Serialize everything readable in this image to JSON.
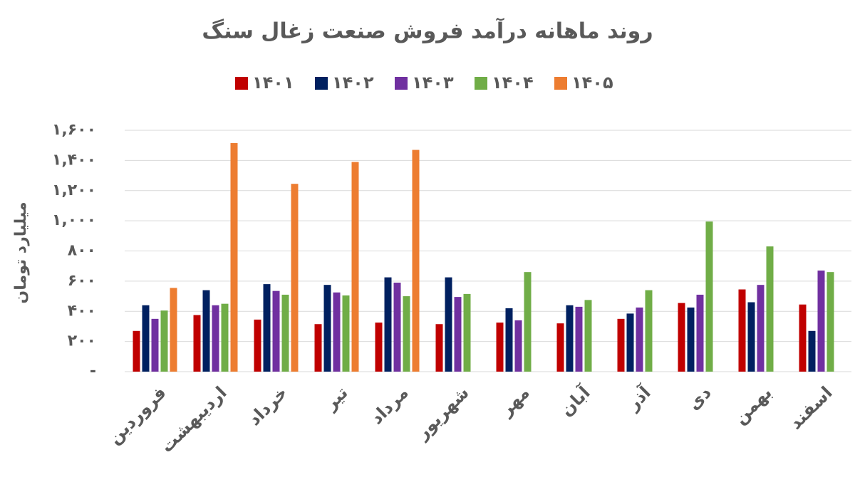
{
  "chart_data": {
    "type": "bar",
    "title": "روند ماهانه درآمد فروش صنعت زغال سنگ",
    "y_label": "میلیارد تومان",
    "categories": [
      "فروردین",
      "اردیبهشت",
      "خرداد",
      "تیر",
      "مرداد",
      "شهریور",
      "مهر",
      "آبان",
      "آذر",
      "دی",
      "بهمن",
      "اسفند"
    ],
    "series": [
      {
        "name": "۱۴۰۱",
        "color": "#c00000",
        "values": [
          270,
          375,
          345,
          315,
          325,
          315,
          325,
          320,
          350,
          455,
          545,
          445
        ]
      },
      {
        "name": "۱۴۰۲",
        "color": "#002060",
        "values": [
          440,
          540,
          580,
          575,
          625,
          625,
          420,
          440,
          385,
          425,
          460,
          270
        ]
      },
      {
        "name": "۱۴۰۳",
        "color": "#7030a0",
        "values": [
          350,
          440,
          535,
          525,
          590,
          495,
          340,
          430,
          425,
          510,
          575,
          670
        ]
      },
      {
        "name": "۱۴۰۴",
        "color": "#70ad47",
        "values": [
          405,
          450,
          510,
          505,
          500,
          515,
          660,
          475,
          540,
          995,
          830,
          660
        ]
      },
      {
        "name": "۱۴۰۵",
        "color": "#ed7d31",
        "values": [
          555,
          1515,
          1245,
          1390,
          1470,
          null,
          null,
          null,
          null,
          null,
          null,
          null
        ]
      }
    ],
    "ylim": [
      0,
      1600
    ],
    "yticks": [
      {
        "value": 0,
        "label": "-"
      },
      {
        "value": 200,
        "label": "۲۰۰"
      },
      {
        "value": 400,
        "label": "۴۰۰"
      },
      {
        "value": 600,
        "label": "۶۰۰"
      },
      {
        "value": 800,
        "label": "۸۰۰"
      },
      {
        "value": 1000,
        "label": "۱,۰۰۰"
      },
      {
        "value": 1200,
        "label": "۱,۲۰۰"
      },
      {
        "value": 1400,
        "label": "۱,۴۰۰"
      },
      {
        "value": 1600,
        "label": "۱,۶۰۰"
      }
    ],
    "grid": true
  }
}
